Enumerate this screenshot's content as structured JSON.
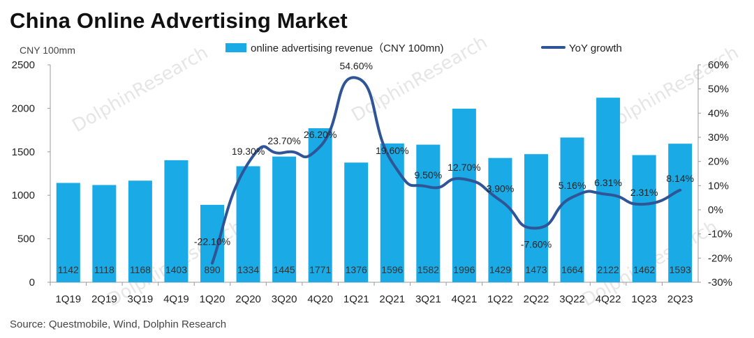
{
  "title": "China Online Advertising Market",
  "source": "Source:   Questmobile, Wind, Dolphin Research",
  "watermark": "DolphinResearch",
  "colors": {
    "bar": "#1aabe6",
    "line": "#2f5597",
    "axis": "#9a9a9a"
  },
  "chart_data": {
    "type": "bar",
    "title": "China Online Advertising Market",
    "ylabel": "CNY 100mm",
    "categories": [
      "1Q19",
      "2Q19",
      "3Q19",
      "4Q19",
      "1Q20",
      "2Q20",
      "3Q20",
      "4Q20",
      "1Q21",
      "2Q21",
      "3Q21",
      "4Q21",
      "1Q22",
      "2Q22",
      "3Q22",
      "4Q22",
      "1Q23",
      "2Q23"
    ],
    "series": [
      {
        "name": "online advertising revenue（CNY 100mn)",
        "type": "bar",
        "axis": "left",
        "values": [
          1142,
          1118,
          1168,
          1403,
          890,
          1334,
          1445,
          1771,
          1376,
          1596,
          1582,
          1996,
          1429,
          1473,
          1664,
          2122,
          1462,
          1593
        ],
        "labels": [
          "1142",
          "1118",
          "1168",
          "1403",
          "890",
          "1334",
          "1445",
          "1771",
          "1376",
          "1596",
          "1582",
          "1996",
          "1429",
          "1473",
          "1664",
          "2122",
          "1462",
          "1593"
        ]
      },
      {
        "name": "YoY growth",
        "type": "line",
        "axis": "right",
        "values": [
          null,
          null,
          null,
          null,
          -22.1,
          19.3,
          23.7,
          26.2,
          54.6,
          19.6,
          9.5,
          12.7,
          3.9,
          -7.6,
          5.16,
          6.31,
          2.31,
          8.14
        ],
        "labels": [
          "",
          "",
          "",
          "",
          "-22.10%",
          "19.30%",
          "23.70%",
          "26.20%",
          "54.60%",
          "19.60%",
          "9.50%",
          "12.70%",
          "3.90%",
          "-7.60%",
          "5.16%",
          "6.31%",
          "2.31%",
          "8.14%"
        ]
      }
    ],
    "ylim_left": [
      0,
      2500
    ],
    "yticks_left": [
      "0",
      "500",
      "1000",
      "1500",
      "2000",
      "2500"
    ],
    "ylim_right": [
      -30,
      60
    ],
    "yticks_right": [
      "-30%",
      "-20%",
      "-10%",
      "0%",
      "10%",
      "20%",
      "30%",
      "40%",
      "50%",
      "60%"
    ],
    "legend_position": "top",
    "grid": false
  }
}
